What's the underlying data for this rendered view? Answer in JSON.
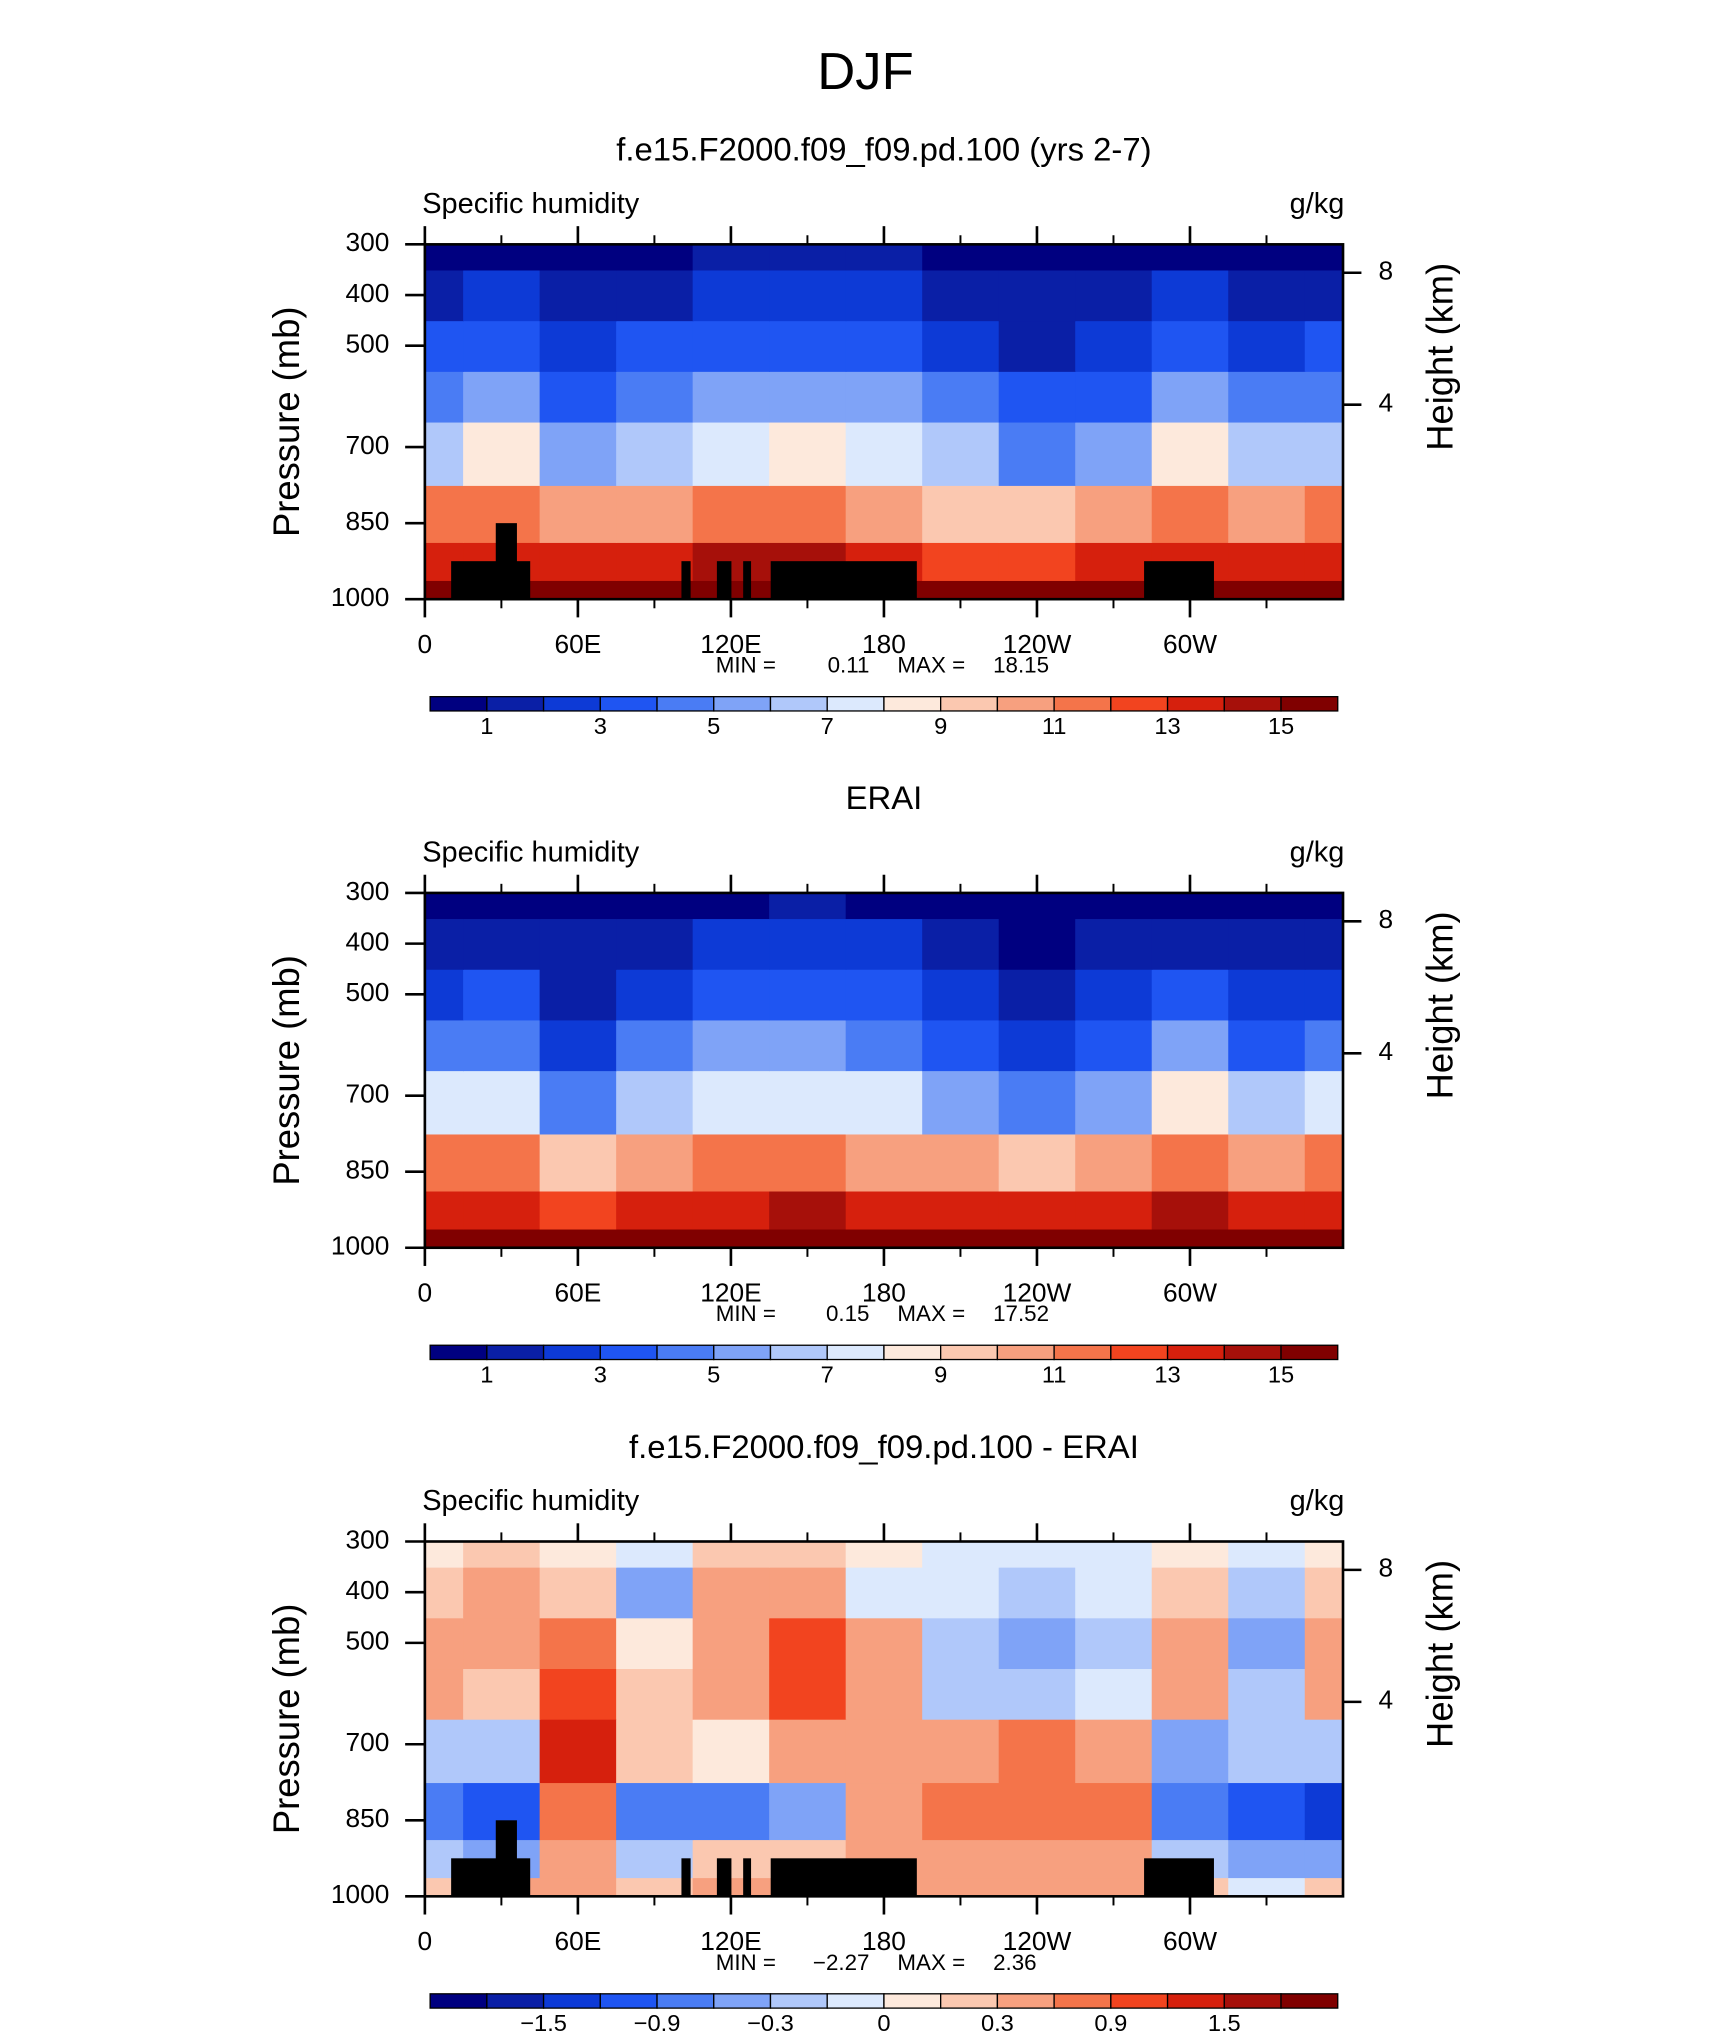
{
  "title": "DJF",
  "chart_data": [
    {
      "type": "contour",
      "title": "f.e15.F2000.f09_f09.pd.100 (yrs 2-7)",
      "left_string": "Specific humidity",
      "right_string": "g/kg",
      "ylabel": "Pressure (mb)",
      "y2label": "Height (km)",
      "x": [
        0,
        30,
        60,
        90,
        120,
        150,
        180,
        210,
        240,
        270,
        300,
        330,
        360
      ],
      "y": [
        1000,
        925,
        850,
        700,
        600,
        500,
        400,
        300
      ],
      "z": [
        [
          16.0,
          16.2,
          16.0,
          16.4,
          16.8,
          16.8,
          16.2,
          15.8,
          15.5,
          16.0,
          16.6,
          16.2,
          16.0
        ],
        [
          13.5,
          13.5,
          13.0,
          13.6,
          14.0,
          14.0,
          13.2,
          12.8,
          12.6,
          13.0,
          13.8,
          13.4,
          13.5
        ],
        [
          11.0,
          11.5,
          10.0,
          10.8,
          11.2,
          11.0,
          10.2,
          9.6,
          9.4,
          10.2,
          11.8,
          10.6,
          11.0
        ],
        [
          6.8,
          8.2,
          5.0,
          6.6,
          7.6,
          8.0,
          7.6,
          6.2,
          4.6,
          5.8,
          8.4,
          6.2,
          6.8
        ],
        [
          4.6,
          5.2,
          3.4,
          4.6,
          5.4,
          5.7,
          5.4,
          4.3,
          3.0,
          3.6,
          5.2,
          4.0,
          4.6
        ],
        [
          3.0,
          3.2,
          2.2,
          3.0,
          3.6,
          3.8,
          3.6,
          2.9,
          1.8,
          2.2,
          3.3,
          2.6,
          3.0
        ],
        [
          1.8,
          2.0,
          1.3,
          1.8,
          2.3,
          2.5,
          2.3,
          1.8,
          1.0,
          1.2,
          2.0,
          1.6,
          1.8
        ],
        [
          0.8,
          0.9,
          0.6,
          0.8,
          1.0,
          1.1,
          1.0,
          0.8,
          0.5,
          0.5,
          0.8,
          0.6,
          0.8
        ]
      ],
      "xlim": [
        0,
        360
      ],
      "ylim": [
        1000,
        300
      ],
      "xticks": [
        0,
        {
          "value": 60,
          "label": "60E"
        },
        {
          "value": 120,
          "label": "120E"
        },
        180,
        {
          "value": 240,
          "label": "120W"
        },
        {
          "value": 300,
          "label": "60W"
        }
      ],
      "xminorticks": [
        30,
        90,
        150,
        210,
        270,
        330
      ],
      "yticks": [
        300,
        400,
        500,
        700,
        850,
        1000
      ],
      "y2ticks": [
        8,
        4
      ],
      "min_label": "MIN =",
      "min": 0.11,
      "max_label": "MAX =",
      "max": 18.15,
      "land_mask": [
        {
          "lon": [
            10.3,
            41.3
          ],
          "top": 925
        },
        {
          "lon": [
            27.8,
            36.1
          ],
          "top": 850
        },
        {
          "lon": [
            100.6,
            104.2
          ],
          "top": 925
        },
        {
          "lon": [
            114.5,
            120.2
          ],
          "top": 925
        },
        {
          "lon": [
            124.8,
            127.9
          ],
          "top": 925
        },
        {
          "lon": [
            135.6,
            192.9
          ],
          "top": 925
        },
        {
          "lon": [
            282,
            309.4
          ],
          "top": 925
        }
      ],
      "colorbar": {
        "levels": [
          1,
          2,
          3,
          4,
          5,
          6,
          7,
          8,
          9,
          10,
          11,
          12,
          13,
          14,
          15
        ],
        "colors": [
          "#000080",
          "#0a1fa6",
          "#0d3ad6",
          "#1f55f2",
          "#4a7cf4",
          "#7fa3f7",
          "#b0c8fa",
          "#dce9fd",
          "#fde9dc",
          "#fbc8b0",
          "#f7a07f",
          "#f4744a",
          "#f2441f",
          "#d6200d",
          "#a6100a",
          "#800000"
        ],
        "ticks": [
          1,
          3,
          5,
          7,
          9,
          11,
          13,
          15
        ]
      }
    },
    {
      "type": "contour",
      "title": "ERAI",
      "left_string": "Specific humidity",
      "right_string": "g/kg",
      "ylabel": "Pressure (mb)",
      "y2label": "Height (km)",
      "x": [
        0,
        30,
        60,
        90,
        120,
        150,
        180,
        210,
        240,
        270,
        300,
        330,
        360
      ],
      "y": [
        1000,
        925,
        850,
        700,
        600,
        500,
        400,
        300
      ],
      "z": [
        [
          16.2,
          15.5,
          16.0,
          16.2,
          16.5,
          16.6,
          16.4,
          16.0,
          15.8,
          16.0,
          16.5,
          16.2,
          16.2
        ],
        [
          13.8,
          13.0,
          12.8,
          13.4,
          13.8,
          14.0,
          13.6,
          13.2,
          13.0,
          13.4,
          14.0,
          13.6,
          13.8
        ],
        [
          11.2,
          11.0,
          9.2,
          10.6,
          11.0,
          11.2,
          10.8,
          10.2,
          9.8,
          10.4,
          11.8,
          10.8,
          11.2
        ],
        [
          7.0,
          7.5,
          4.0,
          6.2,
          7.4,
          7.8,
          7.2,
          5.6,
          4.4,
          5.8,
          8.6,
          6.4,
          7.0
        ],
        [
          4.4,
          4.8,
          2.6,
          4.2,
          5.0,
          5.3,
          4.9,
          3.8,
          2.8,
          3.4,
          5.0,
          3.8,
          4.4
        ],
        [
          2.8,
          3.0,
          1.8,
          2.8,
          3.4,
          3.5,
          3.3,
          2.6,
          1.6,
          2.0,
          3.2,
          2.4,
          2.8
        ],
        [
          1.6,
          1.8,
          1.0,
          1.6,
          2.0,
          2.2,
          2.0,
          1.6,
          0.9,
          1.1,
          1.8,
          1.4,
          1.6
        ],
        [
          0.7,
          0.8,
          0.5,
          0.8,
          0.9,
          1.0,
          0.9,
          0.7,
          0.4,
          0.5,
          0.7,
          0.5,
          0.7
        ]
      ],
      "xlim": [
        0,
        360
      ],
      "ylim": [
        1000,
        300
      ],
      "xticks": [
        0,
        {
          "value": 60,
          "label": "60E"
        },
        {
          "value": 120,
          "label": "120E"
        },
        180,
        {
          "value": 240,
          "label": "120W"
        },
        {
          "value": 300,
          "label": "60W"
        }
      ],
      "xminorticks": [
        30,
        90,
        150,
        210,
        270,
        330
      ],
      "yticks": [
        300,
        400,
        500,
        700,
        850,
        1000
      ],
      "y2ticks": [
        8,
        4
      ],
      "min_label": "MIN =",
      "min": 0.15,
      "max_label": "MAX =",
      "max": 17.52,
      "land_mask": [],
      "colorbar": {
        "levels": [
          1,
          2,
          3,
          4,
          5,
          6,
          7,
          8,
          9,
          10,
          11,
          12,
          13,
          14,
          15
        ],
        "colors": [
          "#000080",
          "#0a1fa6",
          "#0d3ad6",
          "#1f55f2",
          "#4a7cf4",
          "#7fa3f7",
          "#b0c8fa",
          "#dce9fd",
          "#fde9dc",
          "#fbc8b0",
          "#f7a07f",
          "#f4744a",
          "#f2441f",
          "#d6200d",
          "#a6100a",
          "#800000"
        ],
        "ticks": [
          1,
          3,
          5,
          7,
          9,
          11,
          13,
          15
        ]
      }
    },
    {
      "type": "contour",
      "title": "f.e15.F2000.f09_f09.pd.100 - ERAI",
      "left_string": "Specific humidity",
      "right_string": "g/kg",
      "ylabel": "Pressure (mb)",
      "y2label": "Height (km)",
      "x": [
        0,
        30,
        60,
        90,
        120,
        150,
        180,
        210,
        240,
        270,
        300,
        330,
        360
      ],
      "y": [
        1000,
        925,
        850,
        700,
        600,
        500,
        400,
        300
      ],
      "z": [
        [
          0.2,
          0.3,
          0.4,
          0.2,
          0.3,
          0.3,
          0.3,
          0.4,
          0.4,
          0.3,
          0.2,
          -0.1,
          0.2
        ],
        [
          -0.3,
          -0.5,
          0.5,
          -0.3,
          0.1,
          0.1,
          0.5,
          0.5,
          0.5,
          0.3,
          -0.3,
          -0.4,
          -0.5
        ],
        [
          -0.9,
          -1.2,
          0.7,
          -0.7,
          -0.8,
          -0.6,
          0.3,
          0.6,
          0.6,
          0.8,
          -0.9,
          -1.0,
          -1.3
        ],
        [
          -0.3,
          -0.2,
          1.2,
          0.1,
          0.0,
          0.3,
          0.3,
          0.5,
          0.8,
          0.5,
          -0.5,
          -0.3,
          -0.3
        ],
        [
          0.5,
          0.2,
          0.9,
          0.1,
          0.3,
          1.0,
          0.4,
          -0.2,
          -0.3,
          -0.1,
          0.5,
          -0.2,
          0.5
        ],
        [
          0.3,
          0.5,
          0.6,
          0.0,
          0.4,
          1.0,
          0.3,
          -0.2,
          -0.4,
          -0.2,
          0.4,
          -0.5,
          0.3
        ],
        [
          0.2,
          0.5,
          0.2,
          -0.4,
          0.3,
          0.4,
          -0.1,
          -0.1,
          -0.2,
          -0.1,
          0.2,
          -0.3,
          0.2
        ],
        [
          0.0,
          0.2,
          0.0,
          -0.1,
          0.1,
          0.2,
          0.0,
          -0.1,
          -0.1,
          -0.1,
          0.0,
          -0.1,
          0.0
        ]
      ],
      "xlim": [
        0,
        360
      ],
      "ylim": [
        1000,
        300
      ],
      "xticks": [
        0,
        {
          "value": 60,
          "label": "60E"
        },
        {
          "value": 120,
          "label": "120E"
        },
        180,
        {
          "value": 240,
          "label": "120W"
        },
        {
          "value": 300,
          "label": "60W"
        }
      ],
      "xminorticks": [
        30,
        90,
        150,
        210,
        270,
        330
      ],
      "yticks": [
        300,
        400,
        500,
        700,
        850,
        1000
      ],
      "y2ticks": [
        8,
        4
      ],
      "min_label": "MIN =",
      "min": {
        "value": -2.27,
        "label": "−2.27"
      },
      "max_label": "MAX =",
      "max": 2.36,
      "land_mask": [
        {
          "lon": [
            10.3,
            41.3
          ],
          "top": 925
        },
        {
          "lon": [
            27.8,
            36.1
          ],
          "top": 850
        },
        {
          "lon": [
            100.6,
            104.2
          ],
          "top": 925
        },
        {
          "lon": [
            114.5,
            120.2
          ],
          "top": 925
        },
        {
          "lon": [
            124.8,
            127.9
          ],
          "top": 925
        },
        {
          "lon": [
            135.6,
            192.9
          ],
          "top": 925
        },
        {
          "lon": [
            282,
            309.4
          ],
          "top": 925
        }
      ],
      "colorbar": {
        "levels": [
          -1.8,
          -1.5,
          -1.2,
          -0.9,
          -0.6,
          -0.3,
          -0.1,
          0,
          0.1,
          0.3,
          0.6,
          0.9,
          1.2,
          1.5,
          1.8
        ],
        "colors": [
          "#000080",
          "#0a1fa6",
          "#0d3ad6",
          "#1f55f2",
          "#4a7cf4",
          "#7fa3f7",
          "#b0c8fa",
          "#dce9fd",
          "#fde9dc",
          "#fbc8b0",
          "#f7a07f",
          "#f4744a",
          "#f2441f",
          "#d6200d",
          "#a6100a",
          "#800000"
        ],
        "ticks": [
          {
            "value": -1.5,
            "label": "−1.5"
          },
          {
            "value": -0.9,
            "label": "−0.9"
          },
          {
            "value": -0.3,
            "label": "−0.3"
          },
          0,
          0.3,
          0.9,
          1.5
        ]
      }
    }
  ]
}
